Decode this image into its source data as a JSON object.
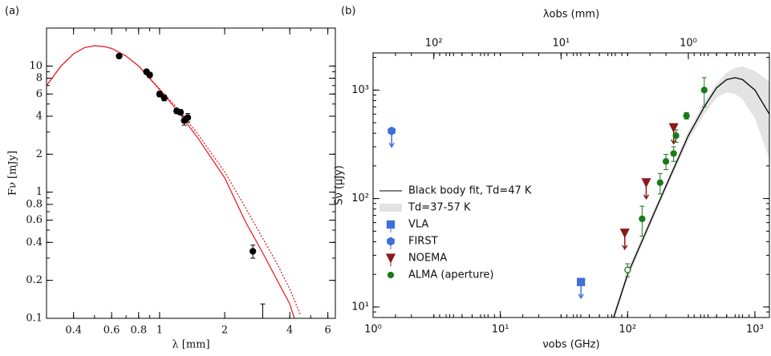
{
  "chart_data": [
    {
      "type": "scatter",
      "panel_label": "(a)",
      "x_label": "λ [mm]",
      "y_label": "Fν [mJy]",
      "log_x": true,
      "log_y": true,
      "xlim": [
        0.3,
        6.5
      ],
      "xticks": [
        0.4,
        0.6,
        0.8,
        1,
        2,
        4,
        6
      ],
      "ylim": [
        0.1,
        20
      ],
      "yticks": [
        0.1,
        0.2,
        0.4,
        0.6,
        0.8,
        1,
        2,
        4,
        6,
        8,
        10
      ],
      "series": [
        {
          "kind": "line",
          "color": "#e8262b",
          "linestyle": "solid",
          "x": [
            0.3,
            0.35,
            0.4,
            0.45,
            0.5,
            0.55,
            0.6,
            0.7,
            0.8,
            1.0,
            1.2,
            1.5,
            2,
            2.5,
            3,
            3.5,
            4,
            4.2
          ],
          "values": [
            7,
            10,
            12.5,
            14,
            14.5,
            14.3,
            13.8,
            12,
            10,
            6.5,
            4.5,
            2.7,
            1.3,
            0.58,
            0.33,
            0.2,
            0.13,
            0.1
          ]
        },
        {
          "kind": "line",
          "color": "#e8262b",
          "linestyle": "dotted",
          "x": [
            0.3,
            0.35,
            0.4,
            0.45,
            0.5,
            0.55,
            0.6,
            0.7,
            0.8,
            1.0,
            1.2,
            1.5,
            2,
            2.5,
            3,
            3.5,
            4,
            4.5
          ],
          "values": [
            7,
            10,
            12.5,
            14,
            14.5,
            14.3,
            13.8,
            12,
            10,
            6.6,
            4.7,
            2.9,
            1.45,
            0.75,
            0.43,
            0.27,
            0.17,
            0.105
          ]
        },
        {
          "kind": "points",
          "marker": "circle",
          "color": "#000000",
          "x": [
            0.65,
            0.87,
            0.9,
            1.0,
            1.05,
            1.2,
            1.25,
            1.3,
            1.35,
            2.7
          ],
          "values": [
            12,
            9,
            8.5,
            6,
            5.6,
            4.4,
            4.3,
            3.7,
            3.9,
            0.34
          ],
          "errors": [
            0.4,
            0.4,
            0.4,
            0.3,
            0.3,
            0.2,
            0.2,
            0.3,
            0.3,
            0.04
          ]
        },
        {
          "kind": "points",
          "marker": "limit-bar",
          "color": "#000000",
          "x": [
            3.0
          ],
          "values": [
            0.13
          ]
        }
      ]
    },
    {
      "type": "scatter",
      "panel_label": "(b)",
      "x_label": "νobs (GHz)",
      "y_label": "Sν (μJy)",
      "x2_label": "λobs (mm)",
      "log_x": true,
      "log_y": true,
      "legend": "center left",
      "xlim": [
        1,
        1300
      ],
      "xticks": [
        {
          "value": 1,
          "label": "10⁰"
        },
        {
          "value": 10,
          "label": "10¹"
        },
        {
          "value": 100,
          "label": "10²"
        },
        {
          "value": 1000,
          "label": "10³"
        }
      ],
      "x2lim": [
        300,
        0.2308
      ],
      "x2ticks": [
        {
          "value": 100,
          "label": "10²"
        },
        {
          "value": 10,
          "label": "10¹"
        },
        {
          "value": 1,
          "label": "10⁰"
        }
      ],
      "ylim": [
        8,
        2200
      ],
      "yticks": [
        {
          "value": 10,
          "label": "10¹"
        },
        {
          "value": 100,
          "label": "10²"
        },
        {
          "value": 1000,
          "label": "10³"
        }
      ],
      "band": {
        "name": "Td=37-57 K",
        "color": "#e3e3e3",
        "x": [
          70,
          100,
          150,
          200,
          300,
          400,
          500,
          600,
          700,
          800,
          1000,
          1300
        ],
        "low": [
          5,
          18,
          55,
          120,
          340,
          600,
          850,
          950,
          920,
          820,
          550,
          230
        ],
        "high": [
          6,
          22,
          66,
          140,
          420,
          780,
          1150,
          1450,
          1600,
          1650,
          1500,
          1200
        ]
      },
      "series": [
        {
          "kind": "line",
          "name": "Black body fit, Td=47 K",
          "color": "#000000",
          "x": [
            70,
            100,
            150,
            200,
            300,
            400,
            500,
            600,
            700,
            800,
            1000,
            1300
          ],
          "values": [
            5.5,
            20,
            60,
            130,
            380,
            700,
            1050,
            1250,
            1300,
            1250,
            1000,
            600
          ]
        },
        {
          "kind": "points",
          "name": "VLA",
          "marker": "square",
          "color": "#3f6fd8",
          "upper_limit": true,
          "x": [
            43
          ],
          "values": [
            17
          ]
        },
        {
          "kind": "points",
          "name": "FIRST",
          "marker": "hexagon",
          "color": "#3f6fd8",
          "upper_limit": true,
          "x": [
            1.4
          ],
          "values": [
            420
          ]
        },
        {
          "kind": "points",
          "name": "NOEMA",
          "marker": "triangle-down",
          "color": "#8b1a1a",
          "upper_limit": true,
          "x": [
            95,
            140,
            230
          ],
          "values": [
            48,
            140,
            450
          ]
        },
        {
          "kind": "points",
          "name": "ALMA (aperture)",
          "marker": "circle",
          "color": "#1a7a1a",
          "x": [
            100,
            130,
            180,
            200,
            230,
            240,
            290,
            400
          ],
          "values": [
            22,
            65,
            140,
            220,
            260,
            380,
            580,
            1000
          ],
          "errors": [
            3,
            20,
            30,
            35,
            40,
            50,
            40,
            300
          ],
          "filled": [
            false,
            true,
            true,
            true,
            true,
            true,
            true,
            true
          ]
        }
      ]
    }
  ]
}
